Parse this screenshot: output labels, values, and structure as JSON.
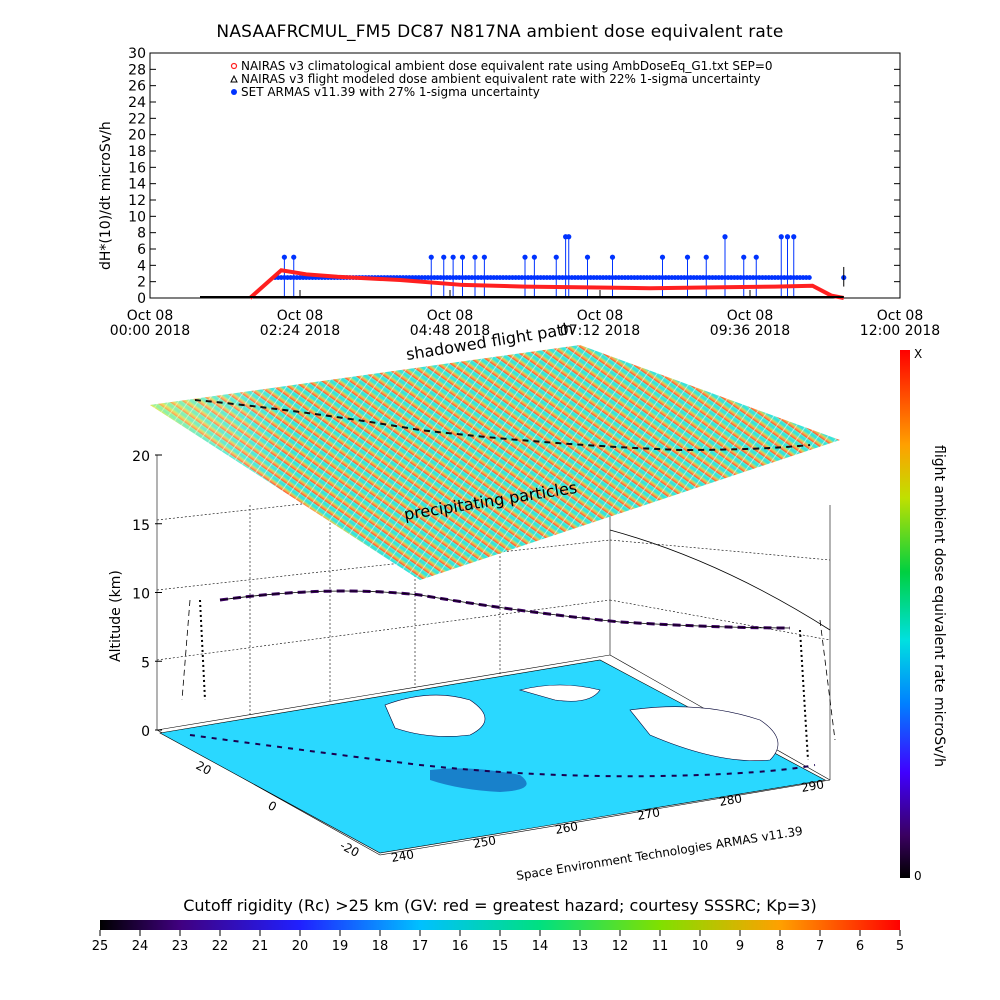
{
  "title": "NASAAFRCMUL_FM5 DC87 N817NA ambient dose equivalent rate",
  "top_chart": {
    "ylabel": "dH*(10)/dt microSv/h",
    "legend": [
      "NAIRAS v3 climatological ambient dose equivalent rate using AmbDoseEq_G1.txt SEP=0",
      "NAIRAS v3 flight modeled dose ambient equivalent rate with 22% 1-sigma uncertainty",
      "SET ARMAS v11.39 with 27% 1-sigma uncertainty"
    ],
    "x_ticks": [
      {
        "l1": "Oct 08",
        "l2": "00:00 2018"
      },
      {
        "l1": "Oct 08",
        "l2": "02:24 2018"
      },
      {
        "l1": "Oct 08",
        "l2": "04:48 2018"
      },
      {
        "l1": "Oct 08",
        "l2": "07:12 2018"
      },
      {
        "l1": "Oct 08",
        "l2": "09:36 2018"
      },
      {
        "l1": "Oct 08",
        "l2": "12:00 2018"
      }
    ],
    "y_ticks": [
      "0",
      "2",
      "4",
      "6",
      "8",
      "10",
      "12",
      "14",
      "16",
      "18",
      "20",
      "22",
      "24",
      "26",
      "28",
      "30"
    ]
  },
  "chart_data": [
    {
      "type": "line",
      "title": "NASAAFRCMUL_FM5 DC87 N817NA ambient dose equivalent rate",
      "ylabel": "dH*(10)/dt microSv/h",
      "xlim": [
        "2018-10-08 00:00",
        "2018-10-08 12:00"
      ],
      "ylim": [
        0,
        30
      ],
      "x_hours": [
        0,
        1.6,
        2.1,
        2.5,
        3,
        4,
        5,
        6,
        7,
        8,
        9,
        10,
        10.6,
        10.9,
        11.1
      ],
      "series": [
        {
          "name": "NAIRAS v3 climatological ambient dose equivalent rate using AmbDoseEq_G1.txt SEP=0",
          "color": "#ff2020",
          "values": [
            null,
            0,
            3.4,
            2.9,
            2.6,
            2.2,
            1.6,
            1.4,
            1.3,
            1.2,
            1.3,
            1.4,
            1.5,
            0.3,
            0
          ]
        },
        {
          "name": "NAIRAS v3 flight modeled dose ambient equivalent rate with 22% 1-sigma uncertainty",
          "color": "#000000",
          "values": [
            0,
            0,
            0,
            0,
            0,
            0,
            0,
            0,
            0,
            0,
            0,
            0,
            0,
            0,
            0
          ]
        },
        {
          "name": "SET ARMAS v11.39 with 27% 1-sigma uncertainty",
          "color": "#0033ff",
          "values": [
            null,
            0,
            2.5,
            2.5,
            2.5,
            2.5,
            2.5,
            2.5,
            2.5,
            2.5,
            2.5,
            2.5,
            2.5,
            0,
            2.5
          ]
        }
      ],
      "spikes": [
        5,
        5,
        5,
        5,
        5,
        5,
        5,
        5,
        5,
        5,
        5,
        5,
        7.5,
        7.5,
        7.5
      ]
    },
    {
      "type": "scatter",
      "title": "",
      "zlabel": "Altitude (km)",
      "z_ticks": [
        "0",
        "5",
        "10",
        "15",
        "20"
      ],
      "lat_ticks": [
        "20",
        "0",
        "-20"
      ],
      "lon_ticks": [
        "240",
        "250",
        "260",
        "270",
        "280",
        "290"
      ],
      "annotations": [
        "precipitating particles",
        "shadowed flight path"
      ],
      "credit": "Space Environment Technologies ARMAS v11.39",
      "color_scale_label": "flight ambient dose equivalent rate microSv/h",
      "color_scale_ends": [
        "X",
        "0"
      ]
    }
  ],
  "colorbar": {
    "title": "Cutoff rigidity (Rc) >25 km (GV: red = greatest hazard; courtesy SSSRC; Kp=3)",
    "ticks": [
      "25",
      "24",
      "23",
      "22",
      "21",
      "20",
      "19",
      "18",
      "17",
      "16",
      "15",
      "14",
      "13",
      "12",
      "11",
      "10",
      "9",
      "8",
      "7",
      "6",
      "5"
    ]
  }
}
